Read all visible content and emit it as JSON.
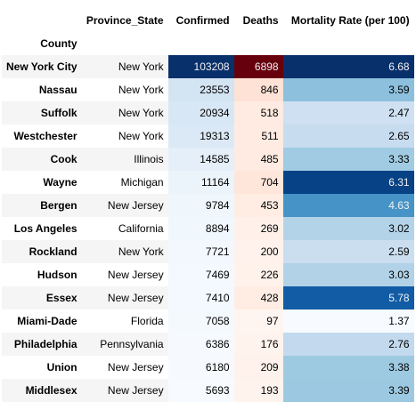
{
  "table": {
    "headers": {
      "index_name": "County",
      "province_state": "Province_State",
      "confirmed": "Confirmed",
      "deaths": "Deaths",
      "mortality_rate": "Mortality Rate (per 100)"
    },
    "rows": [
      {
        "county": "New York City",
        "province_state": "New York",
        "confirmed": "103208",
        "deaths": "6898",
        "mortality_rate": "6.68"
      },
      {
        "county": "Nassau",
        "province_state": "New York",
        "confirmed": "23553",
        "deaths": "846",
        "mortality_rate": "3.59"
      },
      {
        "county": "Suffolk",
        "province_state": "New York",
        "confirmed": "20934",
        "deaths": "518",
        "mortality_rate": "2.47"
      },
      {
        "county": "Westchester",
        "province_state": "New York",
        "confirmed": "19313",
        "deaths": "511",
        "mortality_rate": "2.65"
      },
      {
        "county": "Cook",
        "province_state": "Illinois",
        "confirmed": "14585",
        "deaths": "485",
        "mortality_rate": "3.33"
      },
      {
        "county": "Wayne",
        "province_state": "Michigan",
        "confirmed": "11164",
        "deaths": "704",
        "mortality_rate": "6.31"
      },
      {
        "county": "Bergen",
        "province_state": "New Jersey",
        "confirmed": "9784",
        "deaths": "453",
        "mortality_rate": "4.63"
      },
      {
        "county": "Los Angeles",
        "province_state": "California",
        "confirmed": "8894",
        "deaths": "269",
        "mortality_rate": "3.02"
      },
      {
        "county": "Rockland",
        "province_state": "New York",
        "confirmed": "7721",
        "deaths": "200",
        "mortality_rate": "2.59"
      },
      {
        "county": "Hudson",
        "province_state": "New Jersey",
        "confirmed": "7469",
        "deaths": "226",
        "mortality_rate": "3.03"
      },
      {
        "county": "Essex",
        "province_state": "New Jersey",
        "confirmed": "7410",
        "deaths": "428",
        "mortality_rate": "5.78"
      },
      {
        "county": "Miami-Dade",
        "province_state": "Florida",
        "confirmed": "7058",
        "deaths": "97",
        "mortality_rate": "1.37"
      },
      {
        "county": "Philadelphia",
        "province_state": "Pennsylvania",
        "confirmed": "6386",
        "deaths": "176",
        "mortality_rate": "2.76"
      },
      {
        "county": "Union",
        "province_state": "New Jersey",
        "confirmed": "6180",
        "deaths": "209",
        "mortality_rate": "3.38"
      },
      {
        "county": "Middlesex",
        "province_state": "New Jersey",
        "confirmed": "5693",
        "deaths": "193",
        "mortality_rate": "3.39"
      }
    ]
  },
  "colors": {
    "confirmed_colormap": "Blues",
    "deaths_colormap": "Reds",
    "mortality_colormap": "Blues",
    "row_stripe": "#f5f5f5"
  }
}
